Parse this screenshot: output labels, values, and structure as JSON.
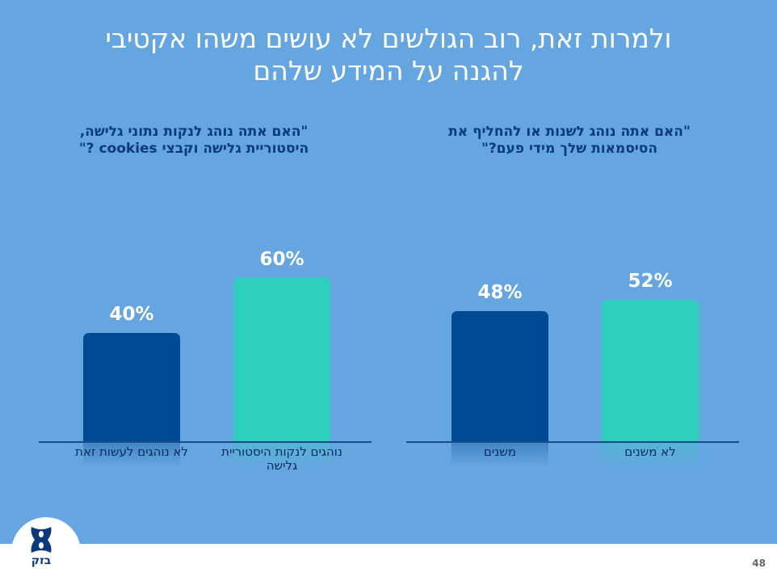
{
  "title_lines": [
    "ולמרות זאת, רוב הגולשים לא עושים משהו אקטיבי",
    "להגנה על המידע שלהם"
  ],
  "colors": {
    "background": "#66a6e0",
    "dark_bar": "#004a94",
    "teal_bar": "#2ecfbf"
  },
  "chart_data": [
    {
      "type": "bar",
      "title_lines": [
        "\"האם אתה נוהג לשנות או להחליף את",
        "הסיסמאות שלך מידי פעם?\""
      ],
      "categories": [
        "משנים",
        "לא משנים"
      ],
      "values": [
        48,
        52
      ],
      "value_labels": [
        "48%",
        "52%"
      ],
      "colors": [
        "#004a94",
        "#2ecfbf"
      ],
      "ylim": [
        0,
        60
      ]
    },
    {
      "type": "bar",
      "title_lines": [
        "\"האם אתה נוהג לנקות נתוני גלישה,",
        "היסטוריית גלישה וקבצי cookies ?\""
      ],
      "categories": [
        "לא נוהגים לעשות זאת",
        "נוהגים לנקות היסטוריית גלישה"
      ],
      "values": [
        40,
        60
      ],
      "value_labels": [
        "40%",
        "60%"
      ],
      "colors": [
        "#004a94",
        "#2ecfbf"
      ],
      "ylim": [
        0,
        60
      ]
    }
  ],
  "footer": {
    "logo_text": "בזק",
    "page_number": "48"
  }
}
